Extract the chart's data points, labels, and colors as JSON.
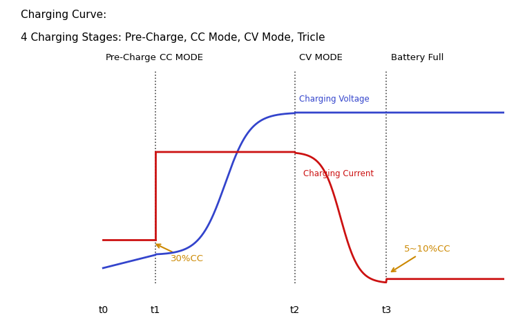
{
  "title_line1": "Charging Curve:",
  "title_line2": "4 Charging Stages: Pre-Charge, CC Mode, CV Mode, Tricle",
  "title_fontsize": 11,
  "background_color": "#ffffff",
  "stage_labels": [
    "Pre-Charge",
    "CC MODE",
    "CV MODE",
    "Battery Full"
  ],
  "t_labels": [
    "t0",
    "t1",
    "t2",
    "t3"
  ],
  "voltage_label": "Charging Voltage",
  "current_label": "Charging Current",
  "annotation_30cc": "30%CC",
  "annotation_5cc": "5~10%CC",
  "voltage_color": "#3344cc",
  "current_color": "#cc1111",
  "annotation_color": "#cc8800",
  "vline_color": "#444444",
  "t0x": 0.08,
  "t1x": 0.2,
  "t2x": 0.52,
  "t3x": 0.73
}
